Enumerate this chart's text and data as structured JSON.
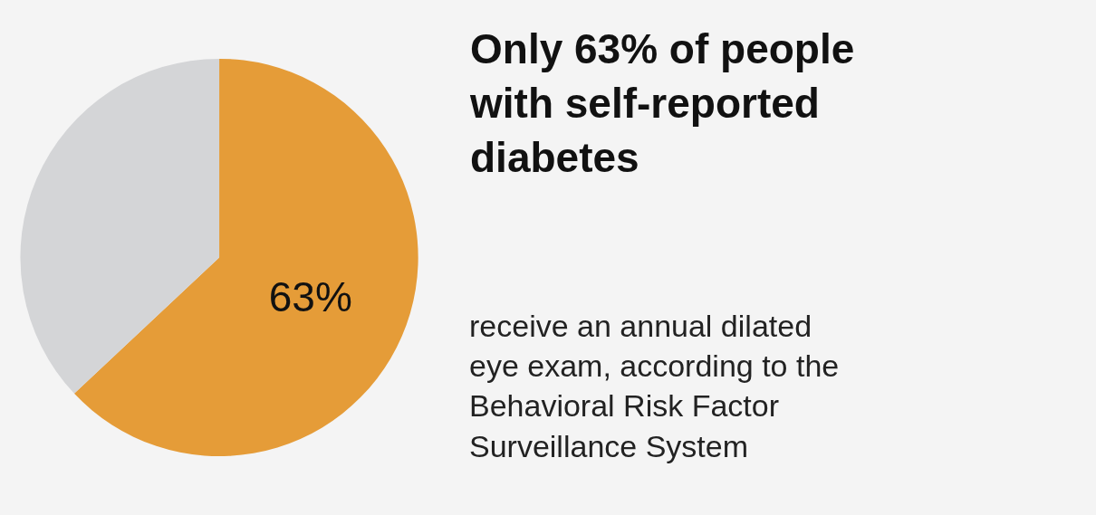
{
  "chart_data": {
    "type": "pie",
    "title": "Only 63% of people with self-reported diabetes",
    "subtitle": "receive an annual dilated eye exam, according to the Behavioral Risk Factor Surveillance System",
    "categories": [
      null,
      null
    ],
    "values": [
      63,
      37
    ],
    "colors": [
      "#e59c38",
      "#d4d5d7"
    ],
    "value_labels": [
      "63%",
      null
    ]
  }
}
